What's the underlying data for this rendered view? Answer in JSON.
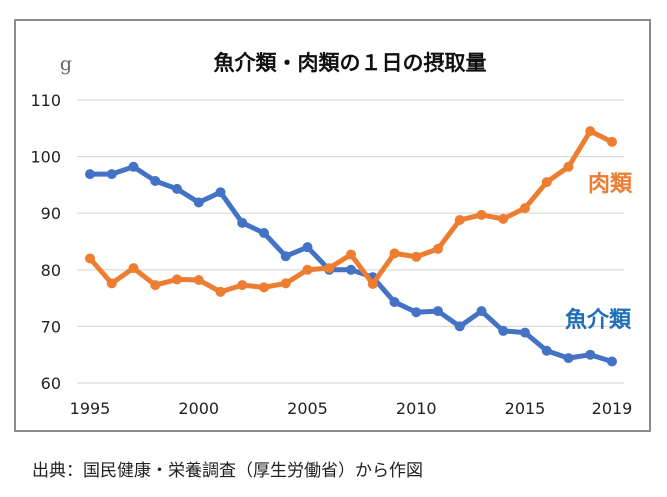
{
  "chart_data": {
    "type": "line",
    "title": "魚介類・肉類の１日の摂取量",
    "ylabel": "g",
    "xlabel": "",
    "ylim": [
      60,
      110
    ],
    "yticks": [
      60,
      70,
      80,
      90,
      100,
      110
    ],
    "xlim": [
      1995,
      2019
    ],
    "xticks": [
      1995,
      2000,
      2005,
      2010,
      2015,
      2019
    ],
    "grid": true,
    "x": [
      1995,
      1996,
      1997,
      1998,
      1999,
      2000,
      2001,
      2002,
      2003,
      2004,
      2005,
      2006,
      2007,
      2008,
      2009,
      2010,
      2011,
      2012,
      2013,
      2014,
      2015,
      2016,
      2017,
      2018,
      2019
    ],
    "series": [
      {
        "name": "魚介類",
        "color": "#4472C4",
        "label_color": "#1F6FB8",
        "values": [
          96.9,
          96.9,
          98.2,
          95.7,
          94.3,
          91.9,
          93.7,
          88.3,
          86.5,
          82.4,
          84.0,
          80.0,
          80.0,
          78.7,
          74.3,
          72.5,
          72.7,
          70.0,
          72.7,
          69.2,
          68.9,
          65.7,
          64.4,
          65.0,
          63.8
        ]
      },
      {
        "name": "肉類",
        "color": "#ED7D31",
        "label_color": "#ED7D31",
        "values": [
          82.0,
          77.6,
          80.3,
          77.3,
          78.3,
          78.2,
          76.1,
          77.3,
          76.9,
          77.6,
          80.0,
          80.3,
          82.7,
          77.5,
          82.9,
          82.3,
          83.7,
          88.8,
          89.7,
          89.0,
          90.9,
          95.5,
          98.2,
          104.5,
          102.6
        ]
      }
    ]
  },
  "caption": "出典：国民健康・栄養調査（厚生労働省）から作図"
}
